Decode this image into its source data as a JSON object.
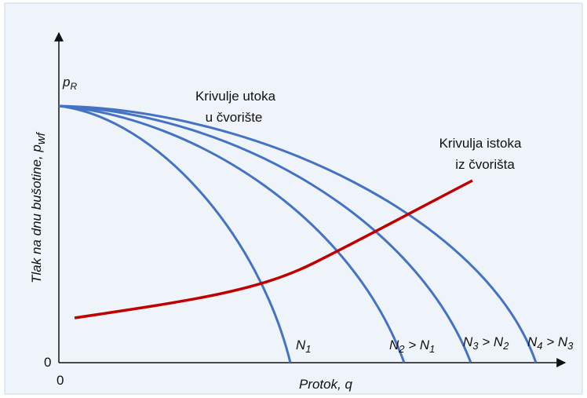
{
  "labels": {
    "p_r": [
      "p",
      "R"
    ],
    "inflow": [
      "Krivulje utoka",
      "u čvorište"
    ],
    "outflow": [
      "Krivulja istoka",
      "iz čvorišta"
    ],
    "curves": [
      [
        "N",
        "1"
      ],
      [
        "N",
        "2",
        " > N",
        "1"
      ],
      [
        "N",
        "3",
        " > N",
        "2"
      ],
      [
        "N",
        "4",
        " > N",
        "3"
      ]
    ],
    "origin_y": "0",
    "origin_x": "0",
    "x_axis": "Protok, q",
    "y_axis": [
      "Tlak na dnu bušotine, p",
      "wf"
    ]
  }
}
